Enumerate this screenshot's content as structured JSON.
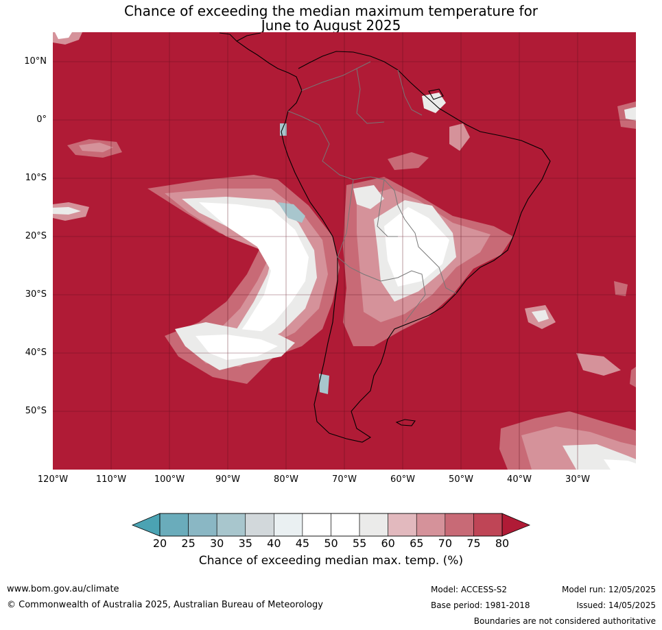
{
  "title_line1": "Chance of exceeding the median maximum temperature for",
  "title_line2": "June to August 2025",
  "lat_labels": [
    "10°N",
    "0°",
    "10°S",
    "20°S",
    "30°S",
    "40°S",
    "50°S"
  ],
  "lon_labels": [
    "120°W",
    "110°W",
    "100°W",
    "90°W",
    "80°W",
    "70°W",
    "60°W",
    "50°W",
    "40°W",
    "30°W"
  ],
  "colorbar": {
    "ticks": [
      "20",
      "25",
      "30",
      "35",
      "40",
      "45",
      "50",
      "55",
      "60",
      "65",
      "70",
      "75",
      "80"
    ],
    "colors": [
      "#4ba3b3",
      "#6aacbb",
      "#8ab7c4",
      "#a8c6cd",
      "#d2d8db",
      "#eaf0f2",
      "#ffffff",
      "#ffffff",
      "#ebebea",
      "#e2b9be",
      "#d5929a",
      "#c86a76",
      "#bf4556",
      "#b01b36"
    ],
    "label": "Chance of exceeding median max. temp. (%)"
  },
  "footer": {
    "website": "www.bom.gov.au/climate",
    "copyright": "© Commonwealth of Australia 2025, Australian Bureau of Meteorology",
    "model": "Model: ACCESS-S2",
    "base_period": "Base period: 1981-2018",
    "model_run": "Model run: 12/05/2025",
    "issued": "Issued: 14/05/2025",
    "disclaimer": "Boundaries are not considered authoritative"
  }
}
